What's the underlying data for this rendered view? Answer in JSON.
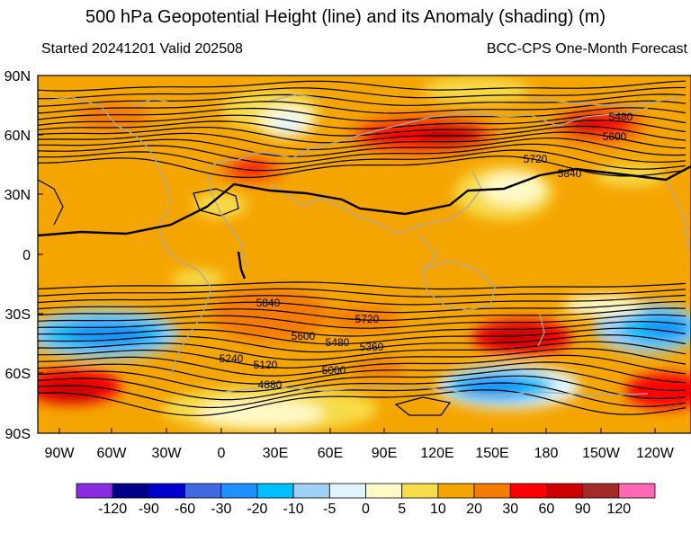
{
  "title": "500 hPa Geopotential Height (line) and its Anomaly (shading) (m)",
  "subtitle_left": "Started 20241201  Valid 202508",
  "subtitle_right": "BCC-CPS One-Month Forecast",
  "lat_labels": [
    "90N",
    "60N",
    "30N",
    "0",
    "30S",
    "60S",
    "90S"
  ],
  "lon_labels": [
    "90W",
    "60W",
    "30W",
    "0",
    "30E",
    "60E",
    "90E",
    "120E",
    "150E",
    "180",
    "150W",
    "120W"
  ],
  "contour_labels": [
    "5480",
    "5600",
    "5720",
    "5840",
    "5840",
    "5720",
    "5600",
    "5480",
    "5360",
    "5240",
    "5120",
    "5000",
    "4880"
  ],
  "colorbar": {
    "levels": [
      "-120",
      "-90",
      "-60",
      "-30",
      "-20",
      "-10",
      "-5",
      "0",
      "5",
      "10",
      "20",
      "30",
      "60",
      "90",
      "120"
    ],
    "colors": [
      "#8a2be2",
      "#00008b",
      "#0000cd",
      "#4169e1",
      "#1e90ff",
      "#00bfff",
      "#9fd0f5",
      "#e0f4ff",
      "#fffac8",
      "#f7dc4a",
      "#f5a500",
      "#f57c00",
      "#ff0000",
      "#cc0000",
      "#a52a2a",
      "#ff69b4"
    ]
  },
  "colors": {
    "background_anomaly": "#f7a500",
    "coastline": "#a9a9a9",
    "contour": "#000000"
  }
}
